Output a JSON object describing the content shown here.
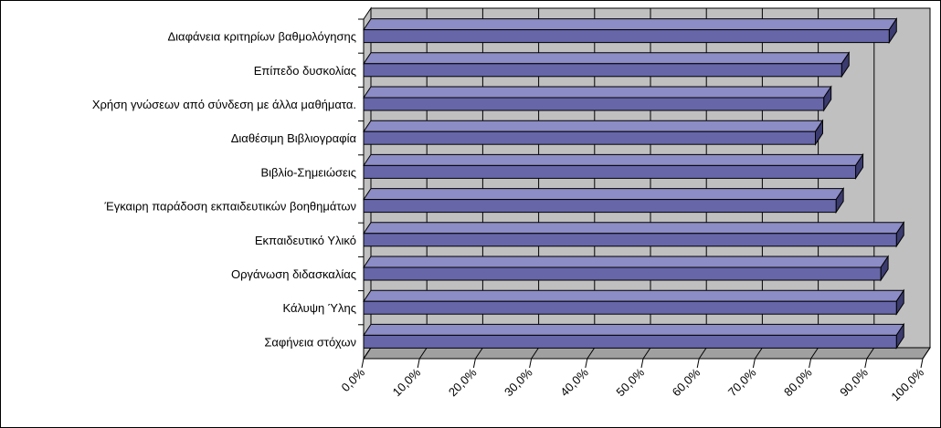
{
  "chart_data": {
    "type": "bar",
    "orientation": "horizontal",
    "three_d": true,
    "categories": [
      "Διαφάνεια κριτηρίων βαθμολόγησης",
      "Επίπεδο δυσκολίας",
      "Χρήση γνώσεων από σύνδεση με άλλα μαθήματα.",
      "Διαθέσιμη Βιβλιογραφία",
      "Βιβλίο-Σημειώσεις",
      "Έγκαιρη παράδοση εκπαιδευτικών βοηθημάτων",
      "Εκπαιδευτικό Υλικό",
      "Οργάνωση διδασκαλίας",
      "Κάλυψη Ύλης",
      "Σαφήνεια στόχων"
    ],
    "values": [
      94.0,
      85.5,
      82.3,
      80.8,
      88.0,
      84.5,
      95.3,
      92.5,
      95.3,
      95.3
    ],
    "xlim": [
      0,
      100
    ],
    "x_ticks": [
      "0,0%",
      "10,0%",
      "20,0%",
      "30,0%",
      "40,0%",
      "50,0%",
      "60,0%",
      "70,0%",
      "80,0%",
      "90,0%",
      "100,0%"
    ],
    "x_tick_rotation": -45,
    "grid": "vertical",
    "legend": "none",
    "colors": {
      "bar_front": "#6666a8",
      "bar_top": "#8c8cc6",
      "bar_side": "#3b3b70",
      "bar_stroke": "#000000",
      "plot_back_wall": "#c0c0c0",
      "plot_floor": "#a0a0a0",
      "gridline": "#000000",
      "border": "#000000"
    }
  }
}
